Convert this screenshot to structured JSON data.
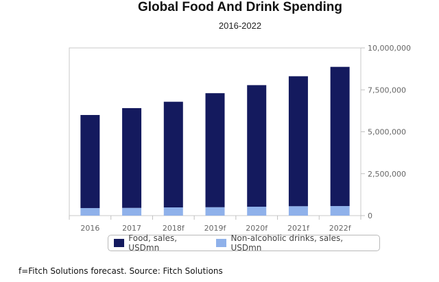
{
  "chart_data": {
    "type": "bar",
    "stacked": true,
    "title": "Global Food And Drink Spending",
    "subtitle": "2016-2022",
    "categories": [
      "2016",
      "2017",
      "2018f",
      "2019f",
      "2020f",
      "2021f",
      "2022f"
    ],
    "series": [
      {
        "name": "Food, sales, USDmn",
        "color": "#141a5e",
        "values": [
          5550000,
          5950000,
          6300000,
          6800000,
          7250000,
          7750000,
          8300000
        ]
      },
      {
        "name": "Non-alcoholic drinks, sales, USDmn",
        "color": "#8fb1ea",
        "values": [
          450000,
          460000,
          490000,
          500000,
          530000,
          560000,
          570000
        ]
      }
    ],
    "ylim": [
      0,
      10000000
    ],
    "yticks": [
      0,
      2500000,
      5000000,
      7500000,
      10000000
    ],
    "ytick_labels": [
      "0",
      "2,500,000",
      "5,000,000",
      "7,500,000",
      "10,000,000"
    ],
    "yaxis_position": "right",
    "grid": false,
    "legend_position": "bottom"
  },
  "footnote": "f=Fitch Solutions forecast. Source: Fitch Solutions"
}
